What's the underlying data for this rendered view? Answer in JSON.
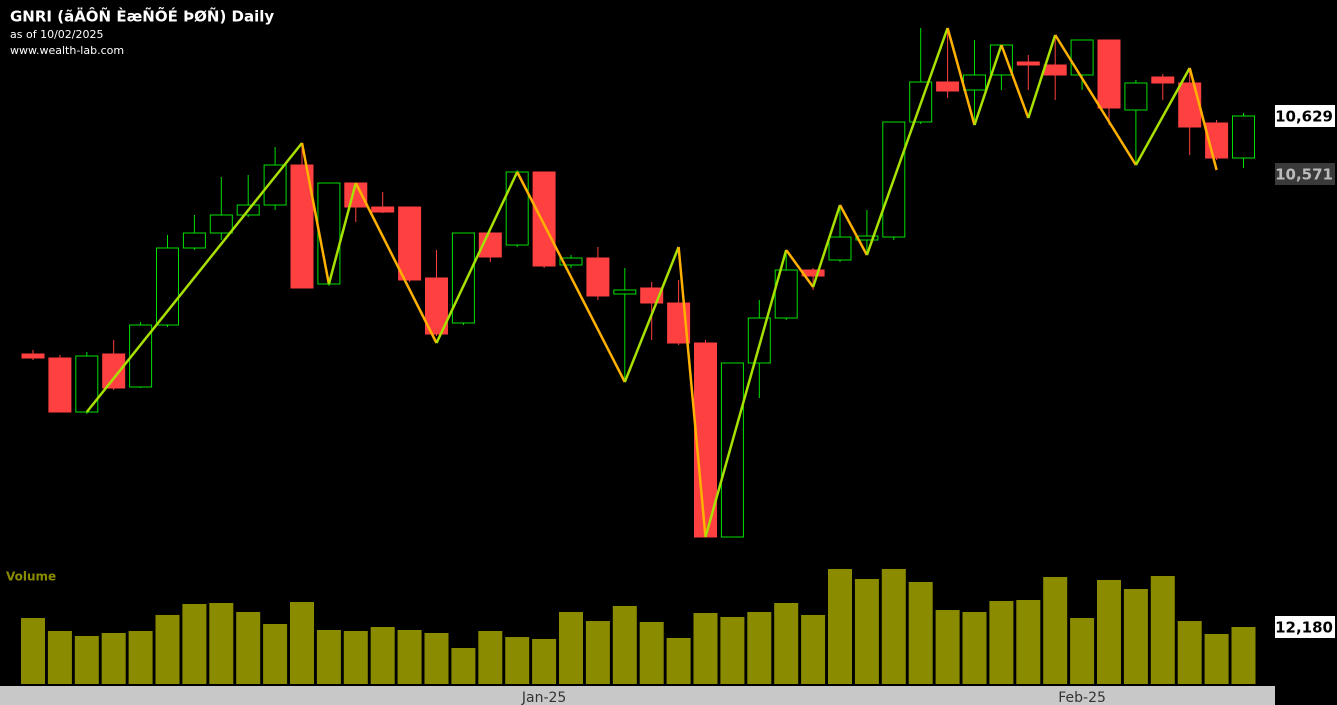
{
  "chart_data": [
    {
      "type": "candlestick",
      "title": "GNRI (ãÄÔÑ ÈæÑÕÉ ÞØÑ) Daily",
      "subtitle": "as of 10/02/2025",
      "source": "www.wealth-lab.com",
      "categories": [
        null,
        null,
        null,
        null,
        null,
        null,
        null,
        null,
        null,
        null,
        null,
        null,
        null,
        null,
        null,
        null,
        null,
        null,
        null,
        "Jan-25",
        null,
        null,
        null,
        null,
        null,
        null,
        null,
        null,
        null,
        null,
        null,
        null,
        null,
        null,
        null,
        null,
        null,
        null,
        null,
        "Feb-25",
        null,
        null,
        null,
        null,
        null,
        null
      ],
      "open": [
        10391,
        10387,
        10333,
        10391,
        10358,
        10420,
        10497,
        10512,
        10530,
        10540,
        10580,
        10461,
        10562,
        10538,
        10538,
        10467,
        10422,
        10512,
        10500,
        10573,
        10480,
        10487,
        10451,
        10457,
        10442,
        10402,
        10208,
        10382,
        10427,
        10475,
        10485,
        10505,
        10508,
        10623,
        10663,
        10655,
        10670,
        10683,
        10680,
        10670,
        10705,
        10635,
        10668,
        10662,
        10622,
        10587
      ],
      "high": [
        10395,
        10390,
        10393,
        10405,
        10423,
        10510,
        10530,
        10568,
        10570,
        10598,
        10602,
        10562,
        10562,
        10553,
        10538,
        10495,
        10512,
        10512,
        10575,
        10573,
        10490,
        10498,
        10477,
        10463,
        10465,
        10405,
        10382,
        10445,
        10495,
        10477,
        10540,
        10535,
        10623,
        10717,
        10717,
        10705,
        10700,
        10690,
        10710,
        10705,
        10705,
        10665,
        10671,
        10677,
        10625,
        10632
      ],
      "low": [
        10385,
        10333,
        10331,
        10355,
        10357,
        10418,
        10495,
        10505,
        10528,
        10535,
        10457,
        10459,
        10523,
        10532,
        10463,
        10409,
        10420,
        10483,
        10498,
        10477,
        10477,
        10445,
        10365,
        10405,
        10400,
        10208,
        10208,
        10347,
        10425,
        10455,
        10483,
        10490,
        10505,
        10621,
        10647,
        10625,
        10655,
        10655,
        10645,
        10655,
        10620,
        10580,
        10645,
        10590,
        10585,
        10577
      ],
      "close": [
        10387,
        10333,
        10389,
        10357,
        10420,
        10497,
        10512,
        10530,
        10540,
        10580,
        10457,
        10562,
        10538,
        10533,
        10465,
        10411,
        10512,
        10488,
        10573,
        10479,
        10487,
        10449,
        10455,
        10442,
        10402,
        10208,
        10382,
        10427,
        10475,
        10469,
        10508,
        10509,
        10623,
        10663,
        10654,
        10670,
        10700,
        10680,
        10670,
        10705,
        10637,
        10662,
        10662,
        10618,
        10587,
        10629
      ],
      "up_color": "#00e000",
      "down_color": "#ff4040",
      "zigzag": {
        "x": [
          2,
          10,
          11,
          12,
          15,
          18,
          22,
          24,
          25,
          28,
          29,
          30,
          31,
          34,
          35,
          36,
          37,
          38,
          41,
          43,
          44
        ],
        "values": [
          10333,
          10602,
          10461,
          10562,
          10402,
          10573,
          10363,
          10498,
          10208,
          10495,
          10458,
          10540,
          10490,
          10717,
          10620,
          10700,
          10627,
          10710,
          10580,
          10677,
          10575
        ],
        "up_color": "#a8e000",
        "down_color": "#ffb000"
      },
      "ylim": [
        10205,
        10745
      ],
      "yticks": [
        {
          "value": 10629,
          "label": "10,629"
        },
        {
          "value": 10571,
          "label": "10,571"
        }
      ]
    },
    {
      "type": "bar",
      "title": "Volume",
      "values": [
        14100,
        11330,
        10260,
        10900,
        11330,
        14750,
        17100,
        17310,
        15390,
        12820,
        17520,
        11540,
        11330,
        12180,
        11540,
        10900,
        7690,
        11330,
        10040,
        9620,
        15390,
        13460,
        16670,
        13250,
        9830,
        15170,
        14320,
        15390,
        17310,
        14750,
        24580,
        22440,
        24580,
        21800,
        15810,
        15390,
        17740,
        17950,
        22870,
        14100,
        22230,
        20300,
        23080,
        13460,
        10690,
        12180
      ],
      "color": "#8b8b00",
      "ylim": [
        0,
        25430
      ],
      "yticks": [
        {
          "value": 12180,
          "label": "12,180"
        }
      ]
    }
  ]
}
